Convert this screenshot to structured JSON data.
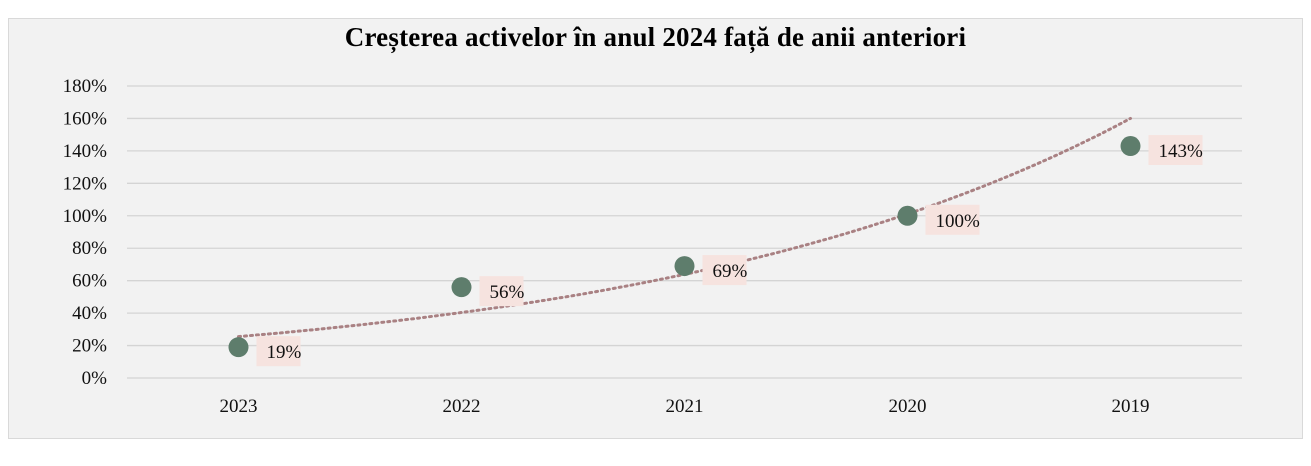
{
  "chart_data": {
    "type": "scatter",
    "title": "Creșterea activelor în anul 2024 față de anii anteriori",
    "categories": [
      "2023",
      "2022",
      "2021",
      "2020",
      "2019"
    ],
    "values": [
      19,
      56,
      69,
      100,
      143
    ],
    "data_labels": [
      "19%",
      "56%",
      "69%",
      "100%",
      "143%"
    ],
    "y_ticks": [
      "0%",
      "20%",
      "40%",
      "60%",
      "80%",
      "100%",
      "120%",
      "140%",
      "160%",
      "180%"
    ],
    "ylim": [
      0,
      180
    ],
    "trendline": {
      "type": "exponential",
      "start_value": 25.5,
      "end_value": 160
    },
    "grid": true,
    "legend": "none",
    "colors": {
      "marker": "#5e7d6c",
      "trendline": "#a98183",
      "label_bg": "#f6e3df",
      "gridline": "#d4d4d4",
      "background": "#f2f2f2"
    }
  }
}
